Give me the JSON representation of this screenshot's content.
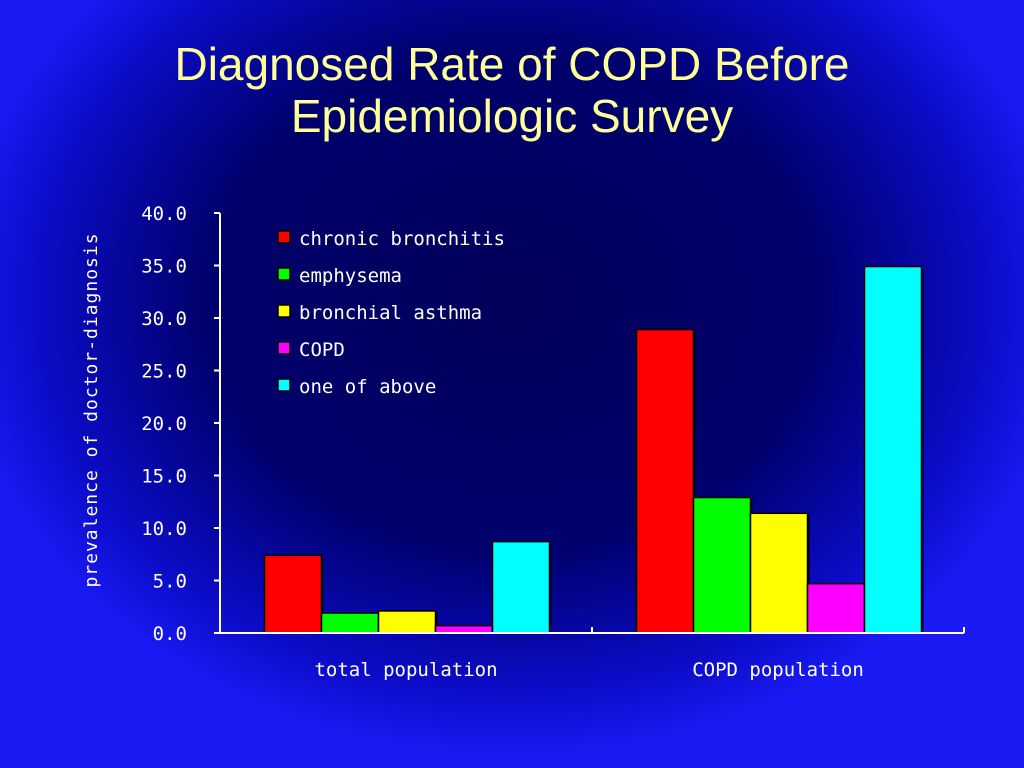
{
  "title_line1": "Diagnosed Rate of COPD Before",
  "title_line2": "Epidemiologic Survey",
  "chart_data": {
    "type": "bar",
    "categories": [
      "total population",
      "COPD population"
    ],
    "series": [
      {
        "name": "chronic bronchitis",
        "values": [
          7.4,
          28.9
        ],
        "color": "#ff0000"
      },
      {
        "name": "emphysema",
        "values": [
          1.9,
          12.9
        ],
        "color": "#00ff00"
      },
      {
        "name": "bronchial asthma",
        "values": [
          2.1,
          11.4
        ],
        "color": "#ffff00"
      },
      {
        "name": "COPD",
        "values": [
          0.7,
          4.7
        ],
        "color": "#ff00ff"
      },
      {
        "name": "one of above",
        "values": [
          8.7,
          34.9
        ],
        "color": "#00ffff"
      }
    ],
    "ylabel": "prevalence of doctor-diagnosis",
    "xlabel": "",
    "ylim": [
      0,
      40
    ],
    "yticks": [
      "0.0",
      "5.0",
      "10.0",
      "15.0",
      "20.0",
      "25.0",
      "30.0",
      "35.0",
      "40.0"
    ],
    "legend_position": "top-left",
    "grid": false
  }
}
